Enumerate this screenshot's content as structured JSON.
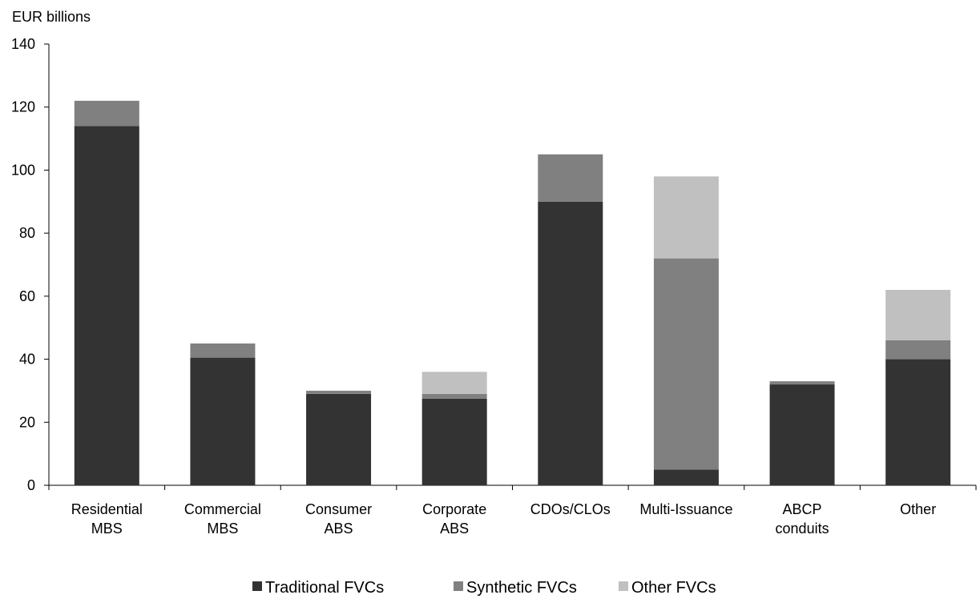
{
  "chart_data": {
    "type": "bar",
    "stacked": true,
    "ylabel": "EUR billions",
    "ylim": [
      0,
      140
    ],
    "yticks": [
      0,
      20,
      40,
      60,
      80,
      100,
      120,
      140
    ],
    "grid": false,
    "legend_position": "bottom",
    "categories": [
      [
        "Residential",
        "MBS"
      ],
      [
        "Commercial",
        "MBS"
      ],
      [
        "Consumer",
        "ABS"
      ],
      [
        "Corporate",
        "ABS"
      ],
      [
        "CDOs/CLOs"
      ],
      [
        "Multi-Issuance"
      ],
      [
        "ABCP",
        "conduits"
      ],
      [
        "Other"
      ]
    ],
    "series": [
      {
        "name": "Traditional FVCs",
        "color": "#333333",
        "values": [
          114,
          40.5,
          29,
          27.5,
          90,
          5,
          32,
          40
        ]
      },
      {
        "name": "Synthetic FVCs",
        "color": "#808080",
        "values": [
          8,
          4.5,
          1,
          1.5,
          15,
          67,
          1,
          6
        ]
      },
      {
        "name": "Other FVCs",
        "color": "#c0c0c0",
        "values": [
          0,
          0,
          0,
          7,
          0,
          26,
          0,
          16
        ]
      }
    ]
  }
}
